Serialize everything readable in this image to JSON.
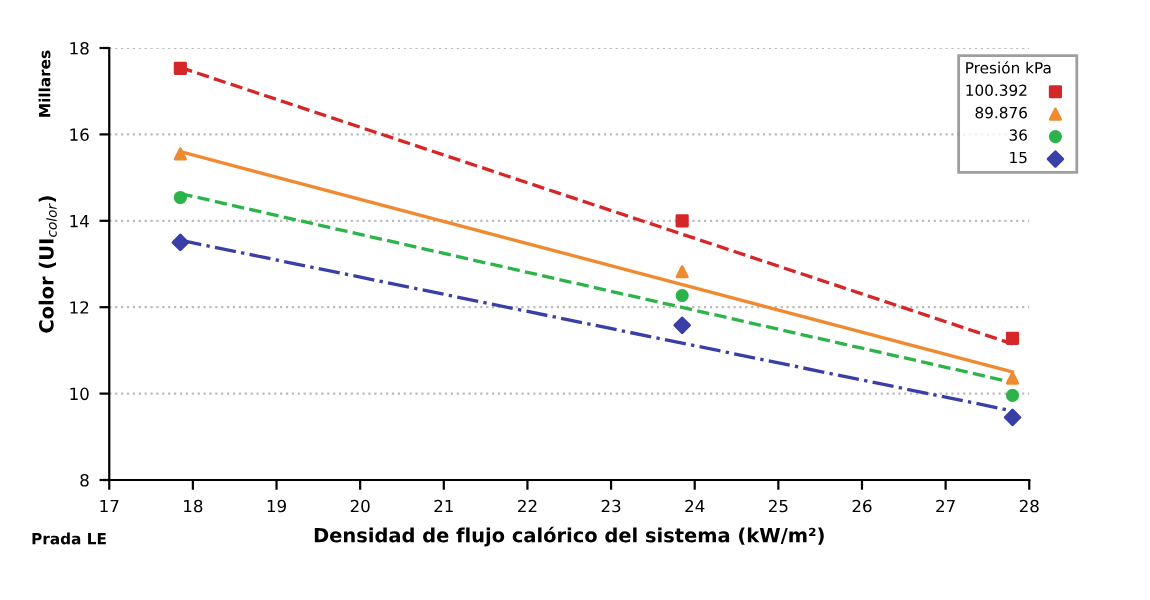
{
  "chart_data": {
    "type": "scatter",
    "xlabel": "Densidad de flujo calórico del sistema (kW/m²)",
    "ylabel": "Color (UI$_{color}$)",
    "legend_title": "Presión kPa",
    "annotations": [
      "Millares",
      "Prada LE"
    ],
    "xlim": [
      17,
      28
    ],
    "xticks": [
      17,
      18,
      19,
      20,
      21,
      22,
      23,
      24,
      25,
      26,
      27,
      28
    ],
    "ylim": [
      8,
      18
    ],
    "yticks": [
      8,
      10,
      12,
      14,
      16,
      18
    ],
    "grid": "y",
    "legend": "top right",
    "series": [
      {
        "name": "100.392",
        "color": "#d62728",
        "marker": "square",
        "x": [
          17.85,
          23.85,
          27.8
        ],
        "values": [
          17.53,
          14.0,
          11.28
        ]
      },
      {
        "name": "89.876",
        "color": "#f08a30",
        "marker": "triangle",
        "x": [
          17.85,
          23.85,
          27.8
        ],
        "values": [
          15.55,
          12.82,
          10.36
        ]
      },
      {
        "name": "36",
        "color": "#2cb34a",
        "marker": "circle",
        "x": [
          17.85,
          23.85,
          27.8
        ],
        "values": [
          14.54,
          12.27,
          9.96
        ]
      },
      {
        "name": "15",
        "color": "#3a3fa8",
        "marker": "diamond",
        "x": [
          17.85,
          23.85,
          27.8
        ],
        "values": [
          13.5,
          11.58,
          9.45
        ]
      },
      {
        "type": "line",
        "color": "#d62728",
        "line_style": "dashed",
        "marker": "none",
        "x": [
          17.85,
          27.8
        ],
        "values": [
          17.55,
          11.15
        ]
      },
      {
        "type": "line",
        "color": "#f08a30",
        "line_style": "solid",
        "marker": "none",
        "x": [
          17.85,
          27.8
        ],
        "values": [
          15.6,
          10.5
        ]
      },
      {
        "type": "line",
        "color": "#2cb34a",
        "line_style": "dashed",
        "marker": "none",
        "x": [
          17.85,
          27.8
        ],
        "values": [
          14.63,
          10.26
        ]
      },
      {
        "type": "line",
        "color": "#3a3fa8",
        "line_style": "dotted",
        "marker": "none",
        "x": [
          17.85,
          27.8
        ],
        "values": [
          13.55,
          9.6
        ]
      }
    ]
  }
}
